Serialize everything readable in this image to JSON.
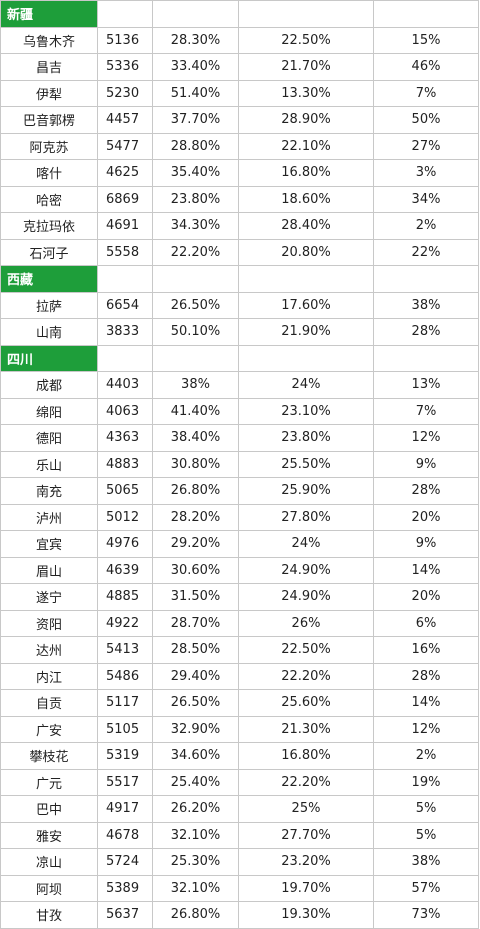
{
  "sections": [
    {
      "title": "新疆",
      "rows": [
        [
          "乌鲁木齐",
          "5136",
          "28.30%",
          "22.50%",
          "15%"
        ],
        [
          "昌吉",
          "5336",
          "33.40%",
          "21.70%",
          "46%"
        ],
        [
          "伊犁",
          "5230",
          "51.40%",
          "13.30%",
          "7%"
        ],
        [
          "巴音郭楞",
          "4457",
          "37.70%",
          "28.90%",
          "50%"
        ],
        [
          "阿克苏",
          "5477",
          "28.80%",
          "22.10%",
          "27%"
        ],
        [
          "喀什",
          "4625",
          "35.40%",
          "16.80%",
          "3%"
        ],
        [
          "哈密",
          "6869",
          "23.80%",
          "18.60%",
          "34%"
        ],
        [
          "克拉玛依",
          "4691",
          "34.30%",
          "28.40%",
          "2%"
        ],
        [
          "石河子",
          "5558",
          "22.20%",
          "20.80%",
          "22%"
        ]
      ]
    },
    {
      "title": "西藏",
      "rows": [
        [
          "拉萨",
          "6654",
          "26.50%",
          "17.60%",
          "38%"
        ],
        [
          "山南",
          "3833",
          "50.10%",
          "21.90%",
          "28%"
        ]
      ]
    },
    {
      "title": "四川",
      "rows": [
        [
          "成都",
          "4403",
          "38%",
          "24%",
          "13%"
        ],
        [
          "绵阳",
          "4063",
          "41.40%",
          "23.10%",
          "7%"
        ],
        [
          "德阳",
          "4363",
          "38.40%",
          "23.80%",
          "12%"
        ],
        [
          "乐山",
          "4883",
          "30.80%",
          "25.50%",
          "9%"
        ],
        [
          "南充",
          "5065",
          "26.80%",
          "25.90%",
          "28%"
        ],
        [
          "泸州",
          "5012",
          "28.20%",
          "27.80%",
          "20%"
        ],
        [
          "宜宾",
          "4976",
          "29.20%",
          "24%",
          "9%"
        ],
        [
          "眉山",
          "4639",
          "30.60%",
          "24.90%",
          "14%"
        ],
        [
          "遂宁",
          "4885",
          "31.50%",
          "24.90%",
          "20%"
        ],
        [
          "资阳",
          "4922",
          "28.70%",
          "26%",
          "6%"
        ],
        [
          "达州",
          "5413",
          "28.50%",
          "22.50%",
          "16%"
        ],
        [
          "内江",
          "5486",
          "29.40%",
          "22.20%",
          "28%"
        ],
        [
          "自贡",
          "5117",
          "26.50%",
          "25.60%",
          "14%"
        ],
        [
          "广安",
          "5105",
          "32.90%",
          "21.30%",
          "12%"
        ],
        [
          "攀枝花",
          "5319",
          "34.60%",
          "16.80%",
          "2%"
        ],
        [
          "广元",
          "5517",
          "25.40%",
          "22.20%",
          "19%"
        ],
        [
          "巴中",
          "4917",
          "26.20%",
          "25%",
          "5%"
        ],
        [
          "雅安",
          "4678",
          "32.10%",
          "27.70%",
          "5%"
        ],
        [
          "凉山",
          "5724",
          "25.30%",
          "23.20%",
          "38%"
        ],
        [
          "阿坝",
          "5389",
          "32.10%",
          "19.70%",
          "57%"
        ],
        [
          "甘孜",
          "5637",
          "26.80%",
          "19.30%",
          "73%"
        ]
      ]
    }
  ]
}
